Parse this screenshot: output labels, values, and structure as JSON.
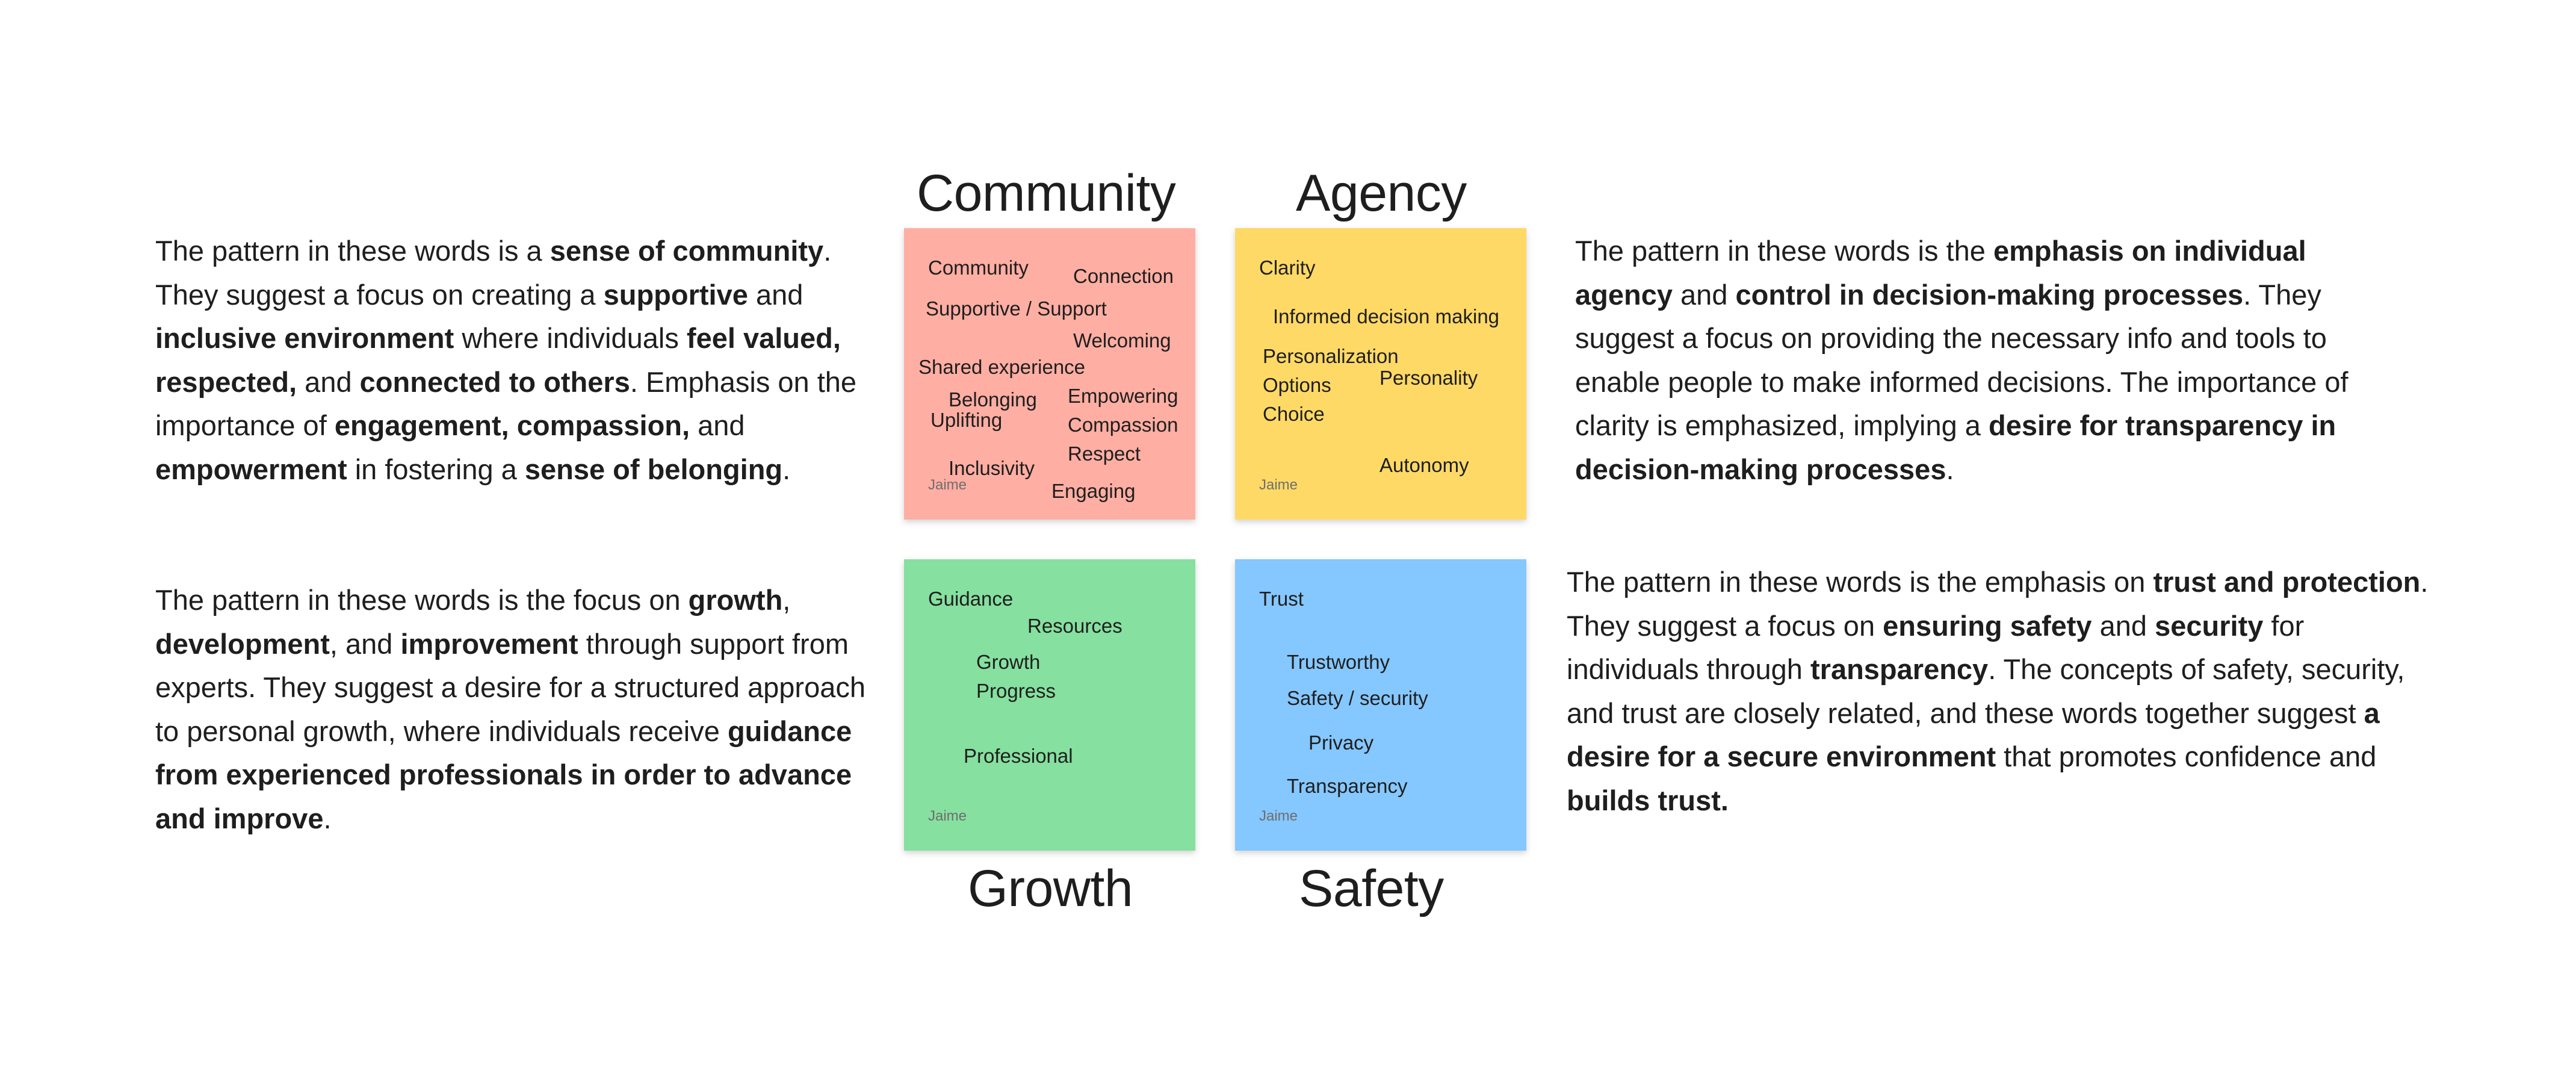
{
  "colors": {
    "community": "#ffaea3",
    "agency": "#ffd966",
    "growth": "#86e09f",
    "safety": "#85c7ff"
  },
  "headings": {
    "community": "Community",
    "agency": "Agency",
    "growth": "Growth",
    "safety": "Safety"
  },
  "stickies": {
    "community": {
      "author": "Jaime",
      "words": [
        "Community",
        "Connection",
        "Supportive / Support",
        "Welcoming",
        "Shared experience",
        "Belonging",
        "Empowering",
        "Uplifting",
        "Compassion",
        "Respect",
        "Inclusivity",
        "Engaging"
      ]
    },
    "agency": {
      "author": "Jaime",
      "words": [
        "Clarity",
        "Informed decision making",
        "Personalization",
        "Personality",
        "Options",
        "Choice",
        "Autonomy"
      ]
    },
    "growth": {
      "author": "Jaime",
      "words": [
        "Guidance",
        "Resources",
        "Growth",
        "Progress",
        "Professional"
      ]
    },
    "safety": {
      "author": "Jaime",
      "words": [
        "Trust",
        "Trustworthy",
        "Safety / security",
        "Privacy",
        "Transparency"
      ]
    }
  },
  "paragraphs": {
    "community": [
      {
        "t": "The pattern in these words is a "
      },
      {
        "t": "sense of community",
        "b": true
      },
      {
        "t": ". They suggest a focus on creating a "
      },
      {
        "t": "supportive",
        "b": true
      },
      {
        "t": " and "
      },
      {
        "t": "inclusive environment",
        "b": true
      },
      {
        "t": " where individuals "
      },
      {
        "t": "feel valued, respected,",
        "b": true
      },
      {
        "t": " and "
      },
      {
        "t": "connected to others",
        "b": true
      },
      {
        "t": ". Emphasis on the importance of "
      },
      {
        "t": "engagement, compassion,",
        "b": true
      },
      {
        "t": " and "
      },
      {
        "t": "empowerment",
        "b": true
      },
      {
        "t": " in fostering a "
      },
      {
        "t": "sense of belonging",
        "b": true
      },
      {
        "t": "."
      }
    ],
    "agency": [
      {
        "t": "The pattern in these words is the "
      },
      {
        "t": "emphasis on individual agency",
        "b": true
      },
      {
        "t": " and "
      },
      {
        "t": "control in decision-making processes",
        "b": true
      },
      {
        "t": ". They suggest a focus on providing the necessary info and tools to enable people to make informed decisions. The importance of clarity is emphasized, implying a "
      },
      {
        "t": "desire for transparency in decision-making processes",
        "b": true
      },
      {
        "t": "."
      }
    ],
    "growth": [
      {
        "t": "The pattern in these words is the focus on "
      },
      {
        "t": "growth",
        "b": true
      },
      {
        "t": ", "
      },
      {
        "t": "development",
        "b": true
      },
      {
        "t": ", and "
      },
      {
        "t": "improvement",
        "b": true
      },
      {
        "t": " through support from experts. They suggest a desire for a structured approach to personal growth, where individuals receive "
      },
      {
        "t": "guidance from experienced professionals in order to advance and improve",
        "b": true
      },
      {
        "t": "."
      }
    ],
    "safety": [
      {
        "t": "The pattern in these words is the emphasis on "
      },
      {
        "t": "trust and protection",
        "b": true
      },
      {
        "t": ". They suggest a focus on "
      },
      {
        "t": "ensuring safety",
        "b": true
      },
      {
        "t": " and "
      },
      {
        "t": "security",
        "b": true
      },
      {
        "t": " for individuals through "
      },
      {
        "t": "transparency",
        "b": true
      },
      {
        "t": ". The concepts of safety, security, and trust are closely related, and these words together suggest "
      },
      {
        "t": "a desire for a secure environment",
        "b": true
      },
      {
        "t": " that promotes confidence and "
      },
      {
        "t": "builds trust.",
        "b": true
      }
    ]
  }
}
